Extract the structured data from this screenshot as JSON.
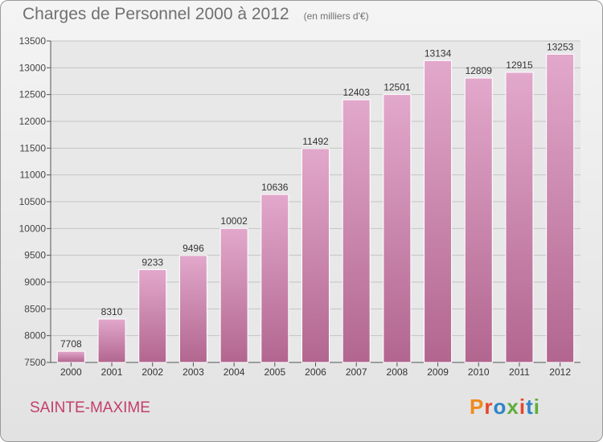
{
  "header": {
    "title": "Charges de Personnel 2000 à 2012",
    "unit": "(en milliers d'€)"
  },
  "footer": {
    "city": "SAINTE-MAXIME",
    "logo": "Proxiti"
  },
  "colors": {
    "bar_top": "#e2a8cb",
    "bar_bottom": "#b2668f",
    "city": "#c33e6c",
    "logo": [
      "#f08a1c",
      "#e8452c",
      "#2e84c6",
      "#5fae3a",
      "#e8452c",
      "#2e84c6",
      "#5fae3a"
    ]
  },
  "chart_data": {
    "type": "bar",
    "title": "Charges de Personnel 2000 à 2012",
    "categories": [
      "2000",
      "2001",
      "2002",
      "2003",
      "2004",
      "2005",
      "2006",
      "2007",
      "2008",
      "2009",
      "2010",
      "2011",
      "2012"
    ],
    "values": [
      7708,
      8310,
      9233,
      9496,
      10002,
      10636,
      11492,
      12403,
      12501,
      13134,
      12809,
      12915,
      13253
    ],
    "ylim": [
      7500,
      13500
    ],
    "yticks": [
      7500,
      8000,
      8500,
      9000,
      9500,
      10000,
      10500,
      11000,
      11500,
      12000,
      12500,
      13000,
      13500
    ],
    "grid": true,
    "legend": "none",
    "data_labels": true
  }
}
